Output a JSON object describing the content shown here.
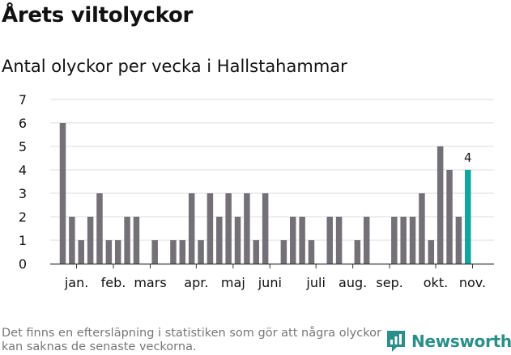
{
  "header": {
    "title": "Årets viltolyckor",
    "subtitle": "Antal olyckor per vecka i Hallstahammar"
  },
  "footnote": "Det finns en eftersläpning i statistiken som gör att några olyckor kan saknas de senaste veckorna.",
  "brand": {
    "name": "Newsworthy",
    "icon": "newsworthy-logo-icon",
    "color": "#2a8f88"
  },
  "chart_data": {
    "type": "bar",
    "ylim": [
      0,
      7
    ],
    "yticks": [
      0,
      1,
      2,
      3,
      4,
      5,
      6,
      7
    ],
    "grid": true,
    "month_labels": [
      {
        "label": "jan.",
        "week": 2.5
      },
      {
        "label": "feb.",
        "week": 6.5
      },
      {
        "label": "mars",
        "week": 10.5
      },
      {
        "label": "apr.",
        "week": 15.5
      },
      {
        "label": "maj",
        "week": 19.5
      },
      {
        "label": "juni",
        "week": 23.5
      },
      {
        "label": "juli",
        "week": 28.5
      },
      {
        "label": "aug.",
        "week": 32.5
      },
      {
        "label": "sep.",
        "week": 36.5
      },
      {
        "label": "okt.",
        "week": 41.5
      },
      {
        "label": "nov.",
        "week": 45.5
      }
    ],
    "weeks": [
      1,
      2,
      3,
      4,
      5,
      6,
      7,
      8,
      9,
      10,
      11,
      12,
      13,
      14,
      15,
      16,
      17,
      18,
      19,
      20,
      21,
      22,
      23,
      24,
      25,
      26,
      27,
      28,
      29,
      30,
      31,
      32,
      33,
      34,
      35,
      36,
      37,
      38,
      39,
      40,
      41,
      42,
      43,
      44,
      45,
      46
    ],
    "values": [
      6,
      2,
      1,
      2,
      3,
      1,
      1,
      2,
      2,
      0,
      1,
      0,
      1,
      1,
      3,
      1,
      3,
      2,
      3,
      2,
      3,
      1,
      3,
      0,
      1,
      2,
      2,
      1,
      0,
      2,
      2,
      0,
      1,
      2,
      0,
      0,
      2,
      2,
      2,
      3,
      1,
      5,
      4,
      2,
      4,
      0
    ],
    "highlight_index": 44,
    "highlight_label": "4",
    "colors": {
      "bar": "#737177",
      "highlight": "#11a69c",
      "grid": "#dddddd",
      "axis": "#333333"
    }
  }
}
